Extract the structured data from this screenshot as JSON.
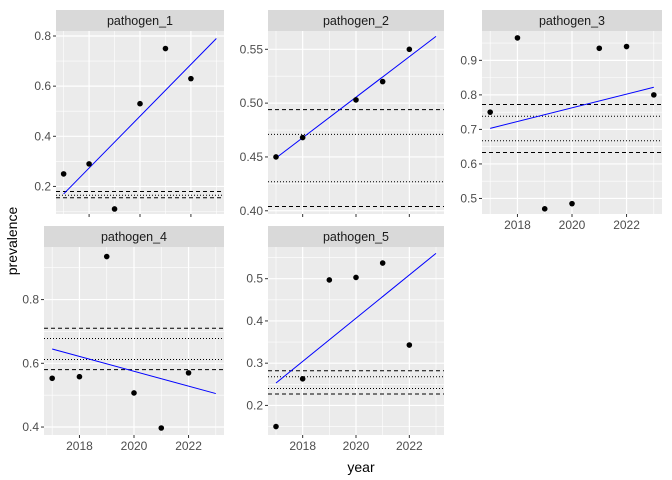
{
  "figure": {
    "xlabel": "year",
    "ylabel": "prevalence"
  },
  "colors": {
    "panel_bg": "#ebebeb",
    "strip_bg": "#d9d9d9",
    "grid": "#ffffff",
    "point": "#000000",
    "fit_line": "#0000ff",
    "ref_lines": "#000000"
  },
  "chart_data": [
    {
      "type": "scatter",
      "title": "pathogen_1",
      "x": [
        2017,
        2018,
        2019,
        2020,
        2021,
        2022
      ],
      "y": [
        0.25,
        0.29,
        0.11,
        0.53,
        0.75,
        0.63
      ],
      "trend": {
        "x": [
          2017,
          2023
        ],
        "y": [
          0.17,
          0.79
        ]
      },
      "dashed_lines": [
        0.155,
        0.18
      ],
      "dotted_lines": [
        0.165
      ],
      "xlim": [
        2016.7,
        2023.3
      ],
      "ylim": [
        0.09,
        0.82
      ],
      "xticks": [
        2018,
        2020,
        2022
      ],
      "xtick_labels": [],
      "yticks": [
        0.2,
        0.4,
        0.6,
        0.8
      ],
      "ytick_labels": [
        "0.2",
        "0.4",
        "0.6",
        "0.8"
      ]
    },
    {
      "type": "scatter",
      "title": "pathogen_2",
      "x": [
        2017,
        2018,
        2020,
        2021,
        2022
      ],
      "y": [
        0.45,
        0.468,
        0.503,
        0.52,
        0.55
      ],
      "trend": {
        "x": [
          2017,
          2023
        ],
        "y": [
          0.449,
          0.562
        ]
      },
      "dashed_lines": [
        0.404,
        0.494
      ],
      "dotted_lines": [
        0.427,
        0.471
      ],
      "xlim": [
        2016.7,
        2023.3
      ],
      "ylim": [
        0.397,
        0.567
      ],
      "xticks": [
        2018,
        2020,
        2022
      ],
      "xtick_labels": [],
      "yticks": [
        0.4,
        0.45,
        0.5,
        0.55
      ],
      "ytick_labels": [
        "0.40",
        "0.45",
        "0.50",
        "0.55"
      ]
    },
    {
      "type": "scatter",
      "title": "pathogen_3",
      "x": [
        2017,
        2018,
        2019,
        2020,
        2021,
        2022,
        2023
      ],
      "y": [
        0.75,
        0.965,
        0.47,
        0.485,
        0.935,
        0.94,
        0.8
      ],
      "trend": {
        "x": [
          2017,
          2023
        ],
        "y": [
          0.703,
          0.822
        ]
      },
      "dashed_lines": [
        0.633,
        0.772
      ],
      "dotted_lines": [
        0.667,
        0.738
      ],
      "xlim": [
        2016.7,
        2023.3
      ],
      "ylim": [
        0.455,
        0.985
      ],
      "xticks": [
        2018,
        2020,
        2022
      ],
      "xtick_labels": [
        "2018",
        "2020",
        "2022"
      ],
      "yticks": [
        0.5,
        0.6,
        0.7,
        0.8,
        0.9
      ],
      "ytick_labels": [
        "0.5",
        "0.6",
        "0.7",
        "0.8",
        "0.9"
      ]
    },
    {
      "type": "scatter",
      "title": "pathogen_4",
      "x": [
        2017,
        2018,
        2019,
        2020,
        2021,
        2022
      ],
      "y": [
        0.553,
        0.558,
        0.935,
        0.507,
        0.397,
        0.57
      ],
      "trend": {
        "x": [
          2017,
          2023
        ],
        "y": [
          0.645,
          0.505
        ]
      },
      "dashed_lines": [
        0.58,
        0.71
      ],
      "dotted_lines": [
        0.612,
        0.678
      ],
      "xlim": [
        2016.7,
        2023.3
      ],
      "ylim": [
        0.375,
        0.965
      ],
      "xticks": [
        2018,
        2020,
        2022
      ],
      "xtick_labels": [
        "2018",
        "2020",
        "2022"
      ],
      "yticks": [
        0.4,
        0.6,
        0.8
      ],
      "ytick_labels": [
        "0.4",
        "0.6",
        "0.8"
      ]
    },
    {
      "type": "scatter",
      "title": "pathogen_5",
      "x": [
        2017,
        2018,
        2019,
        2020,
        2021,
        2022
      ],
      "y": [
        0.15,
        0.263,
        0.497,
        0.503,
        0.537,
        0.343
      ],
      "trend": {
        "x": [
          2017,
          2023
        ],
        "y": [
          0.253,
          0.56
        ]
      },
      "dashed_lines": [
        0.227,
        0.282
      ],
      "dotted_lines": [
        0.24,
        0.268
      ],
      "xlim": [
        2016.7,
        2023.3
      ],
      "ylim": [
        0.13,
        0.575
      ],
      "xticks": [
        2018,
        2020,
        2022
      ],
      "xtick_labels": [
        "2018",
        "2020",
        "2022"
      ],
      "yticks": [
        0.2,
        0.3,
        0.4,
        0.5
      ],
      "ytick_labels": [
        "0.2",
        "0.3",
        "0.4",
        "0.5"
      ]
    }
  ]
}
